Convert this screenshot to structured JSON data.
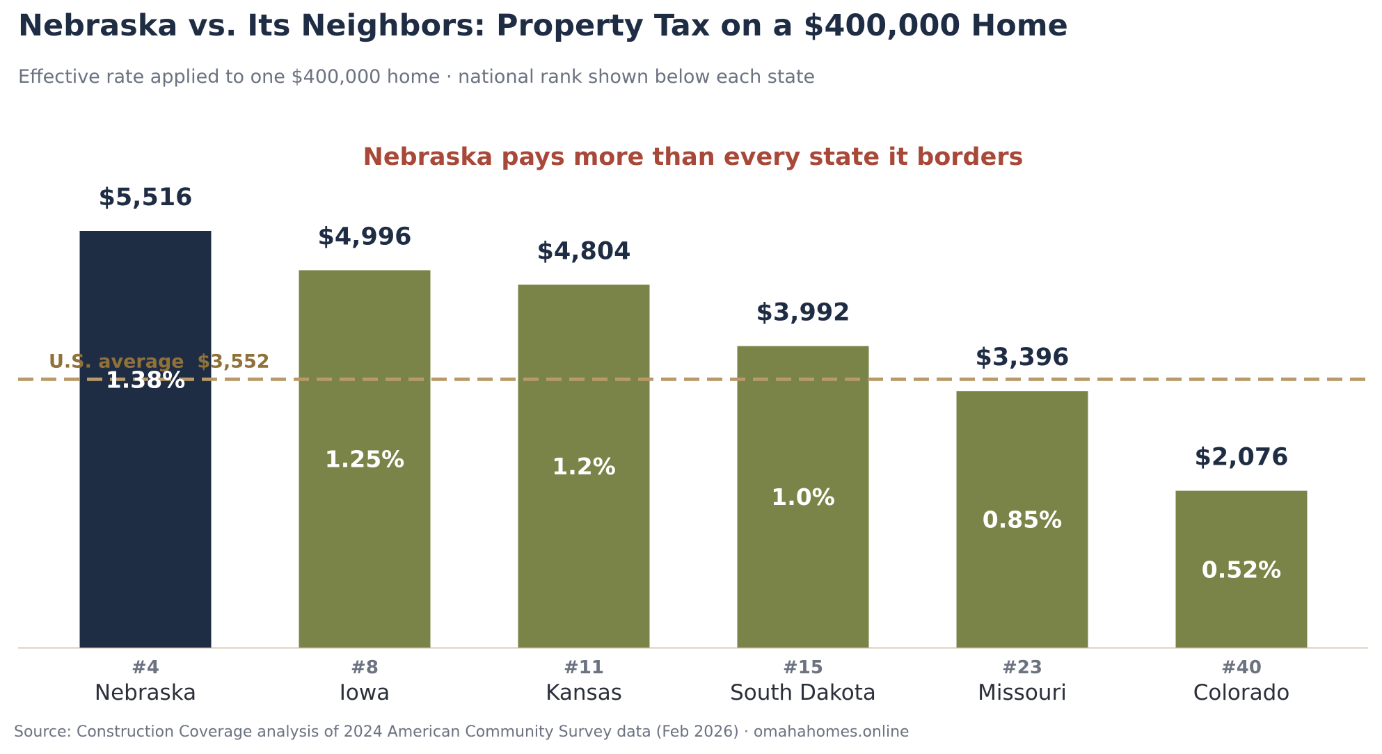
{
  "title": "Nebraska vs. Its Neighbors: Property Tax on a $400,000 Home",
  "subtitle": "Effective rate applied to one $400,000 home  ·  national rank shown below each state",
  "source": "Source: Construction Coverage analysis of 2024 American Community Survey data (Feb 2026)  ·  omahahomes.online",
  "colors": {
    "highlight": "#1f2d44",
    "bar": "#7a8448",
    "reference": "#b89a69",
    "reference_text": "#8f7139",
    "annotation": "#a84838",
    "value_label": "#1f2d44",
    "rank_label": "#6b7280",
    "category_label": "#2b2f3a",
    "inner_label": "#ffffff",
    "axis": "#d6ccbc"
  },
  "chart_data": {
    "type": "bar",
    "title": "",
    "annotation": "Nebraska pays more than every state it borders",
    "categories": [
      "Nebraska",
      "Iowa",
      "Kansas",
      "South Dakota",
      "Missouri",
      "Colorado"
    ],
    "values": [
      5516,
      4996,
      4804,
      3992,
      3396,
      2076
    ],
    "value_labels": [
      "$5,516",
      "$4,996",
      "$4,804",
      "$3,992",
      "$3,396",
      "$2,076"
    ],
    "rates": [
      "1.38%",
      "1.25%",
      "1.2%",
      "1.0%",
      "0.85%",
      "0.52%"
    ],
    "ranks": [
      "#4",
      "#8",
      "#11",
      "#15",
      "#23",
      "#40"
    ],
    "highlight": "Nebraska",
    "reference_line": {
      "label": "U.S. average  $3,552",
      "value": 3552,
      "style": "dashed"
    },
    "ylim": [
      0,
      6500
    ],
    "xlabel": "",
    "ylabel": "",
    "grid": false,
    "legend": "none"
  }
}
